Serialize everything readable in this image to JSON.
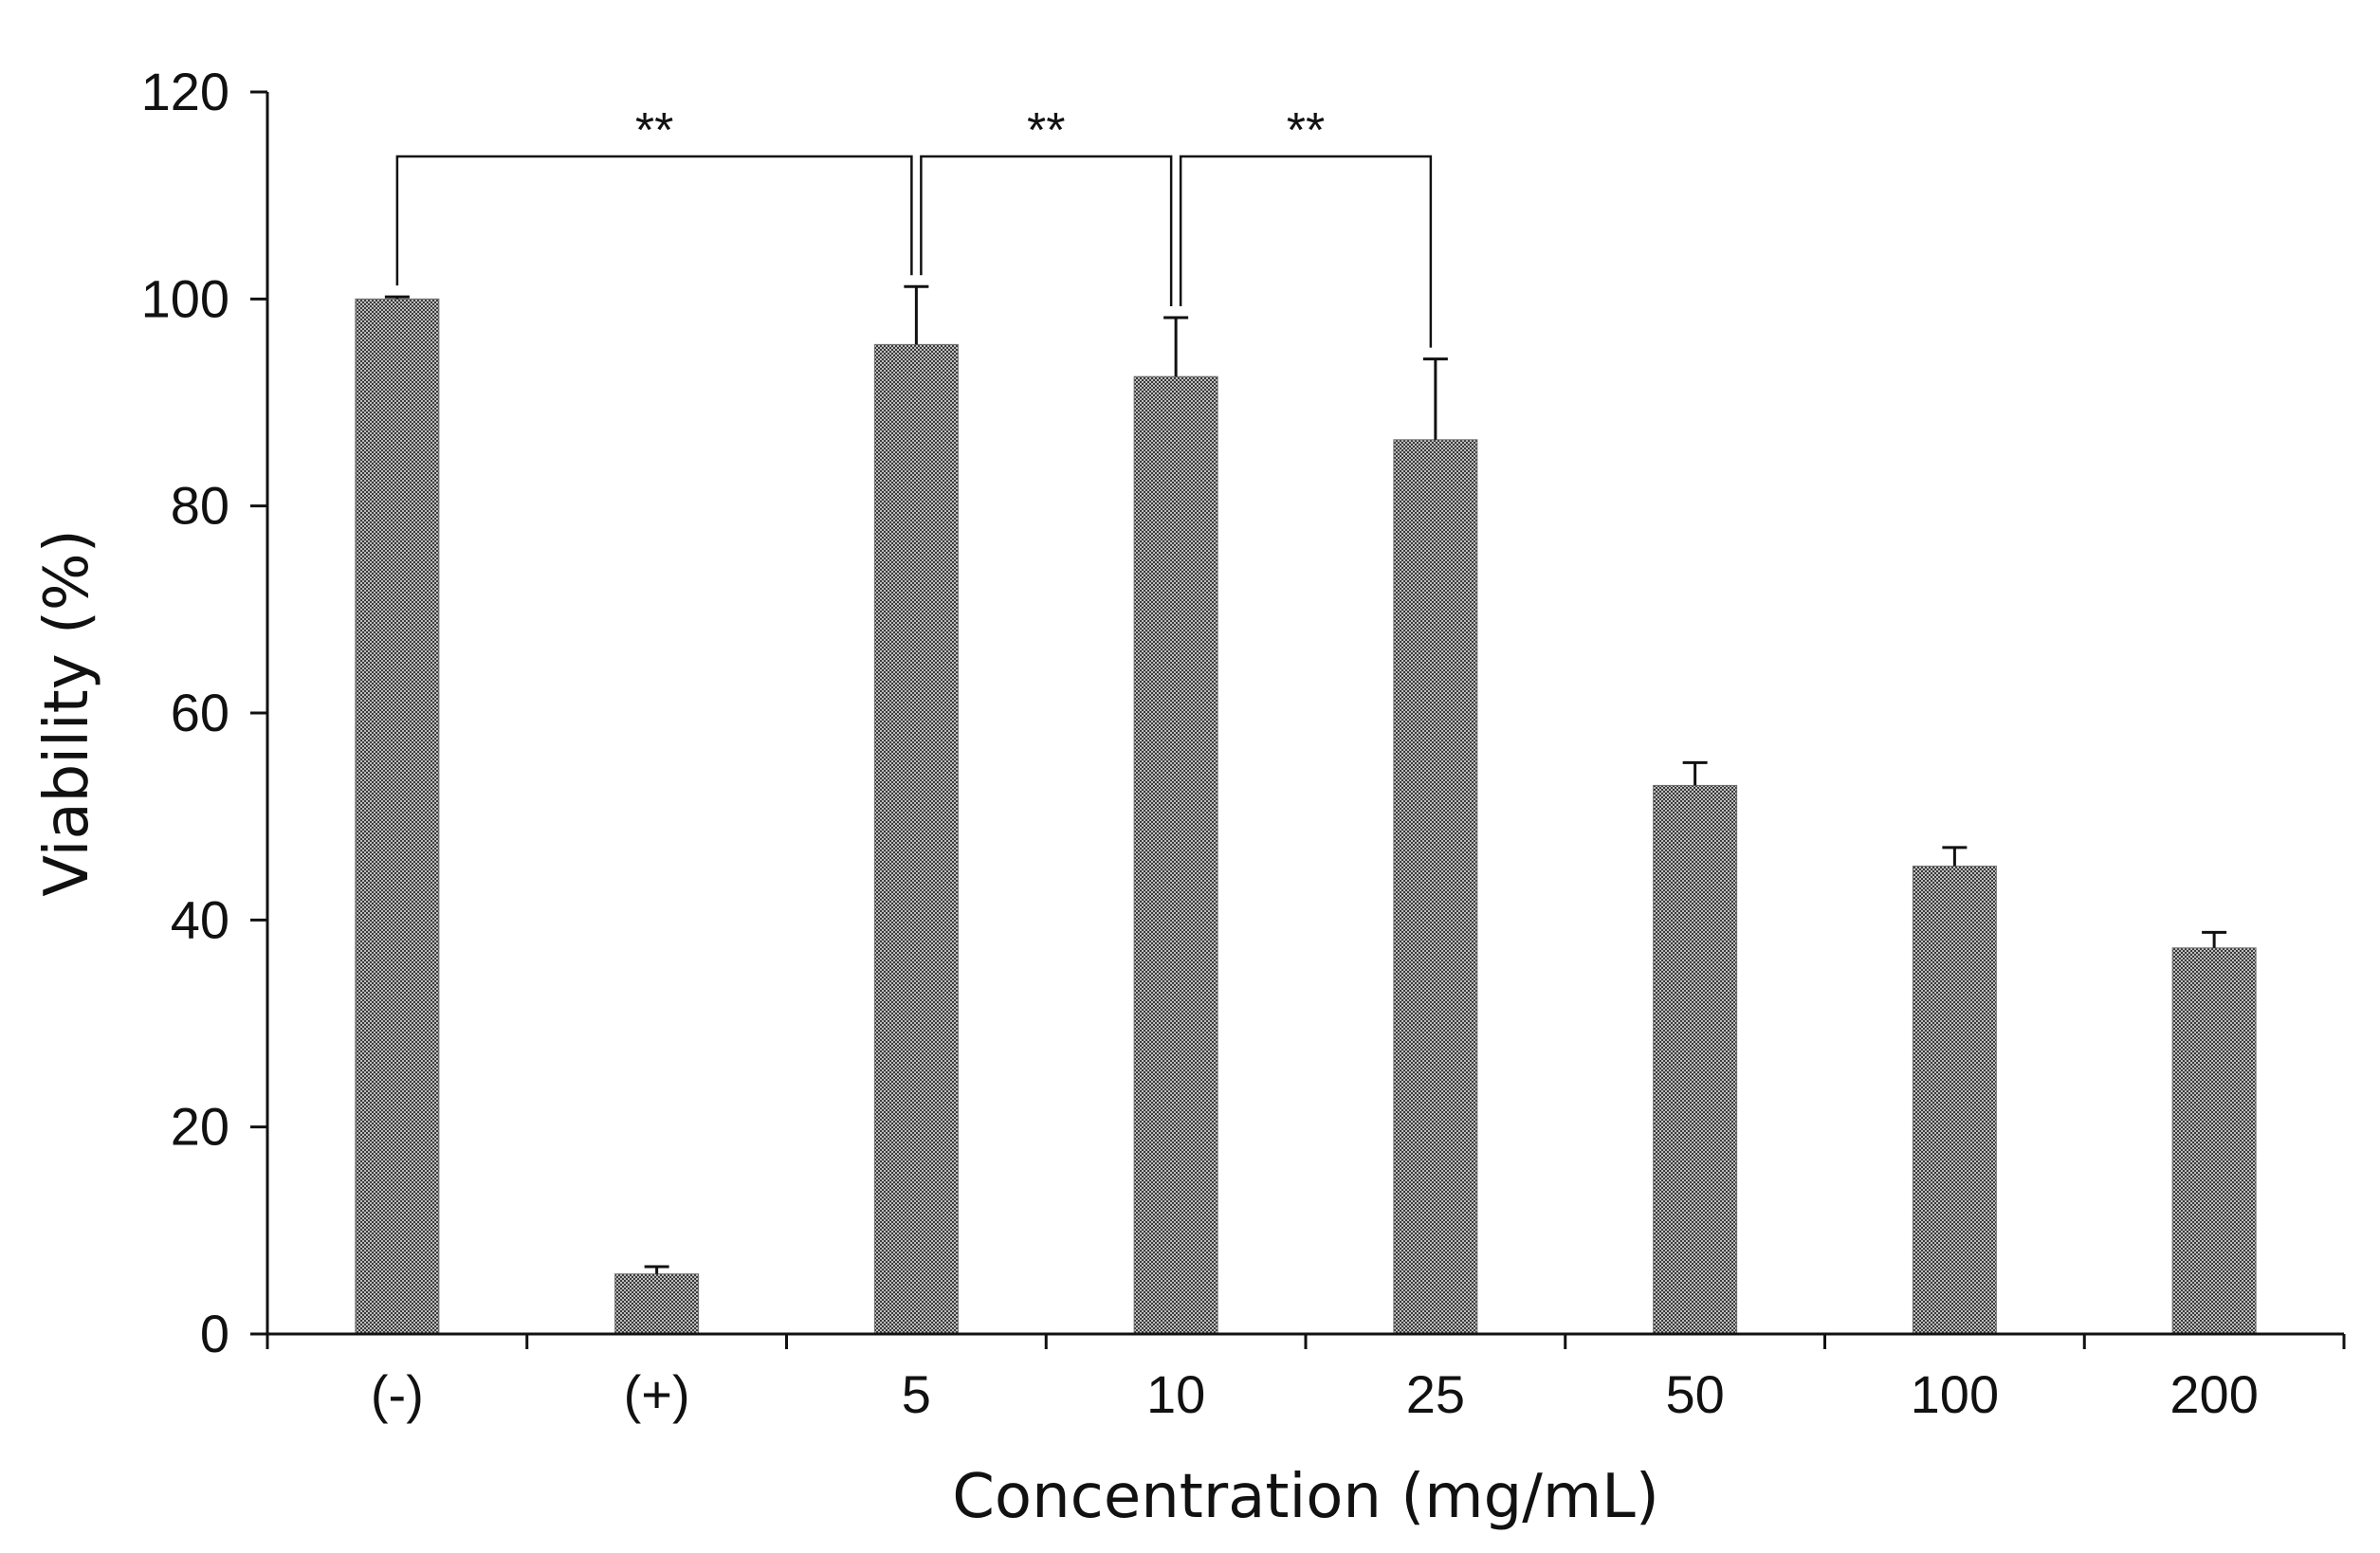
{
  "chart_data": {
    "type": "bar",
    "title": "",
    "xlabel": "Concentration (mg/mL)",
    "ylabel": "Viability (%)",
    "categories": [
      "(-)",
      "(+)",
      "5",
      "10",
      "25",
      "50",
      "100",
      "200"
    ],
    "series": [
      {
        "values": [
          100,
          5.8,
          95.6,
          92.5,
          86.4,
          53.0,
          45.2,
          37.3
        ],
        "error": [
          0.2,
          0.7,
          5.6,
          5.7,
          7.8,
          2.2,
          1.8,
          1.5
        ]
      }
    ],
    "ylim": [
      0,
      120
    ],
    "yticks": [
      "0",
      "20",
      "40",
      "60",
      "80",
      "100",
      "120"
    ],
    "grid": false,
    "legend": "none",
    "bar_fill": "#6e6e6e",
    "significance": [
      {
        "from": 0,
        "to": 2,
        "label": "**"
      },
      {
        "from": 2,
        "to": 3,
        "label": "**"
      },
      {
        "from": 3,
        "to": 4,
        "label": "**"
      }
    ]
  }
}
